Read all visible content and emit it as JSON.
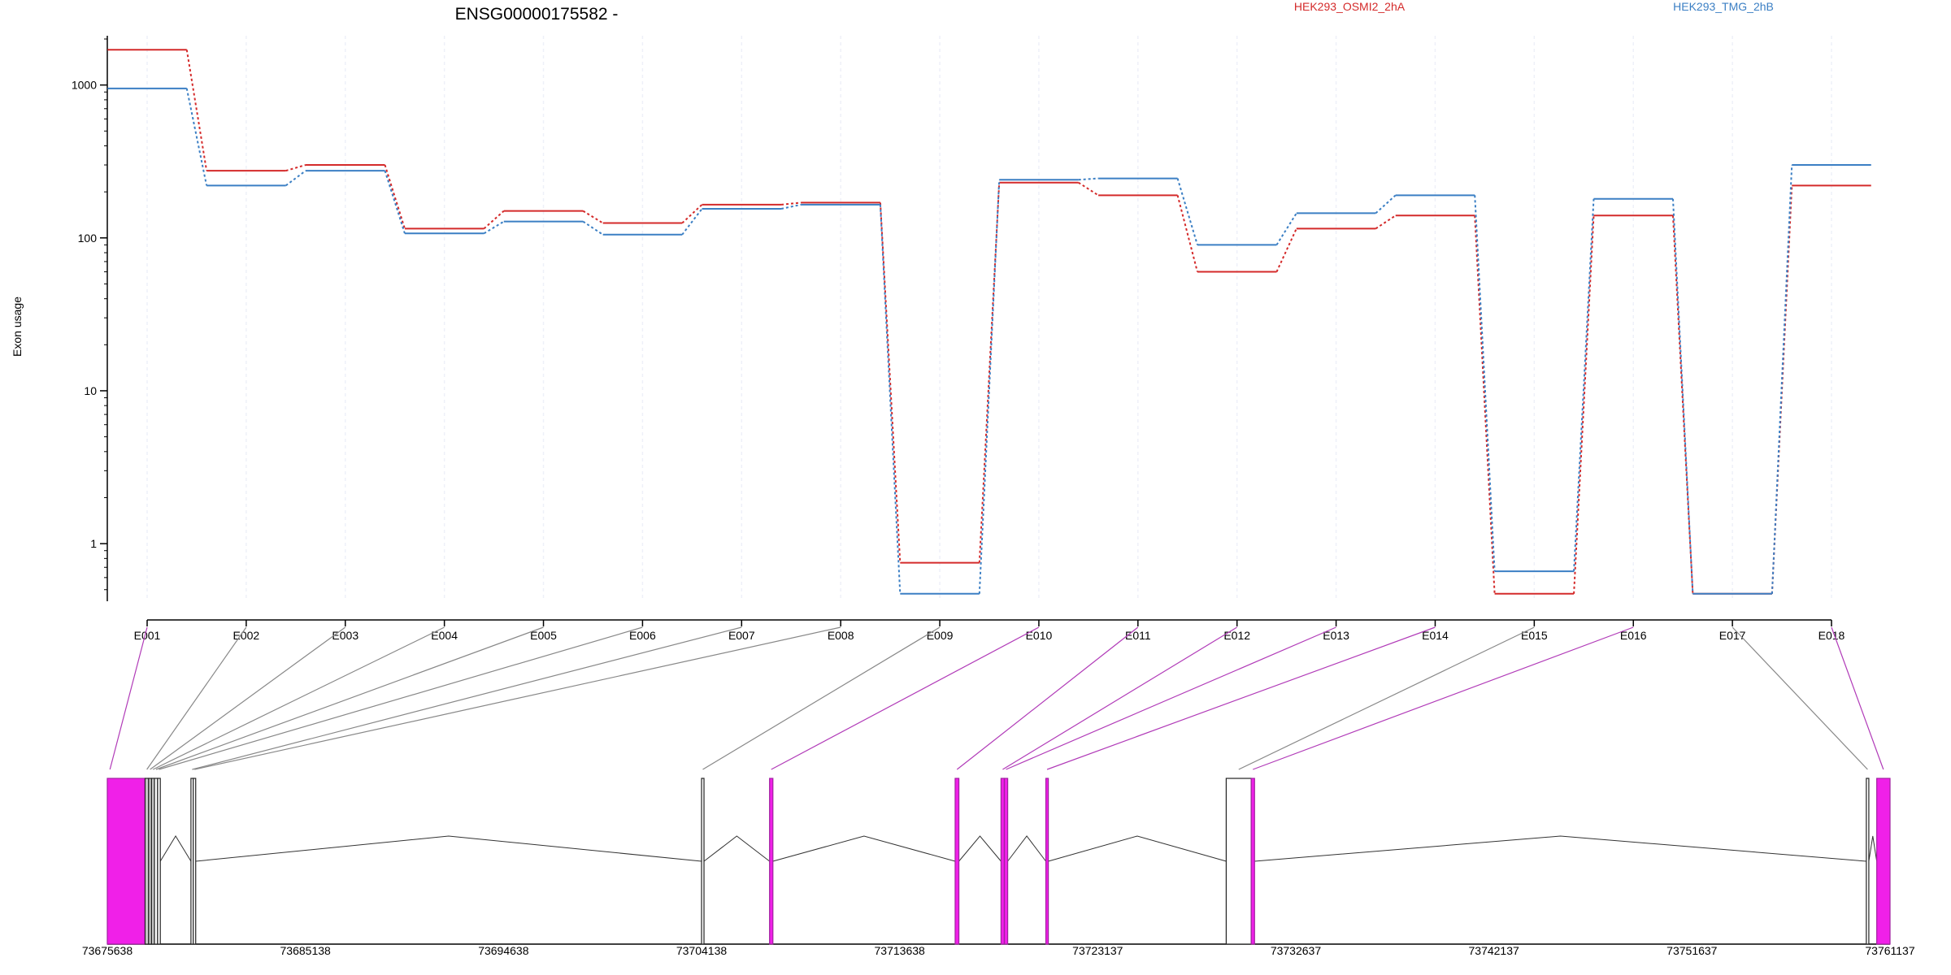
{
  "chart_data": {
    "type": "line",
    "title": "ENSG00000175582 -",
    "ylabel": "Exon usage",
    "xlabel": "",
    "y_scale": "log",
    "ylim": [
      0.42,
      2100
    ],
    "y_ticks": [
      1,
      10,
      100,
      1000
    ],
    "y_tick_labels": [
      "1",
      "10",
      "100",
      "1000"
    ],
    "categories": [
      "E001",
      "E002",
      "E003",
      "E004",
      "E005",
      "E006",
      "E007",
      "E008",
      "E009",
      "E010",
      "E011",
      "E012",
      "E013",
      "E014",
      "E015",
      "E016",
      "E017",
      "E018"
    ],
    "series": [
      {
        "name": "HEK293_OSMI2_2hA",
        "color": "#d42a2a",
        "values": [
          1700,
          275,
          300,
          115,
          150,
          125,
          165,
          170,
          0.75,
          230,
          190,
          60,
          115,
          140,
          0.47,
          140,
          0.47,
          220
        ]
      },
      {
        "name": "HEK293_TMG_2hB",
        "color": "#3b7fc4",
        "values": [
          950,
          220,
          275,
          107,
          128,
          105,
          155,
          165,
          0.47,
          240,
          245,
          90,
          145,
          190,
          0.66,
          180,
          0.47,
          300
        ]
      }
    ],
    "grid": true,
    "legend": "top",
    "gene_model": {
      "coordinate_labels": [
        "73675638",
        "73685138",
        "73694638",
        "73704138",
        "73713638",
        "73723137",
        "73732637",
        "73742137",
        "73751637",
        "73761137"
      ],
      "coordinate_values": [
        73675638,
        73685138,
        73694638,
        73704138,
        73713638,
        73723137,
        73732637,
        73742137,
        73751637,
        73761137
      ],
      "highlight_color": "#e621e0",
      "link_color_plain": "#888888",
      "link_color_highlight": "#b13bb8",
      "exons": [
        {
          "id": "E001",
          "start": 73675638,
          "end": 73677450,
          "fill": "#f020e8",
          "highlight": true
        },
        {
          "id": "E002",
          "start": 73677450,
          "end": 73677620,
          "fill": "#c8c8c8",
          "highlight": false
        },
        {
          "id": "E003",
          "start": 73677620,
          "end": 73677760,
          "fill": "#c8c8c8",
          "highlight": false
        },
        {
          "id": "E004",
          "start": 73677760,
          "end": 73677900,
          "fill": "#c8c8c8",
          "highlight": false
        },
        {
          "id": "E005",
          "start": 73677900,
          "end": 73678050,
          "fill": "#ffffff",
          "highlight": false
        },
        {
          "id": "E006",
          "start": 73678050,
          "end": 73678180,
          "fill": "#ffffff",
          "highlight": false
        },
        {
          "id": "E007",
          "start": 73679650,
          "end": 73679760,
          "fill": "#ffffff",
          "highlight": false
        },
        {
          "id": "E008",
          "start": 73679760,
          "end": 73679870,
          "fill": "#ffffff",
          "highlight": false
        },
        {
          "id": "E009",
          "start": 73704138,
          "end": 73704250,
          "fill": "#ffffff",
          "highlight": false
        },
        {
          "id": "E010",
          "start": 73707400,
          "end": 73707560,
          "fill": "#f020e8",
          "highlight": true
        },
        {
          "id": "E011",
          "start": 73716300,
          "end": 73716480,
          "fill": "#f020e8",
          "highlight": true
        },
        {
          "id": "E012",
          "start": 73718500,
          "end": 73718660,
          "fill": "#f020e8",
          "highlight": true
        },
        {
          "id": "E013",
          "start": 73718660,
          "end": 73718820,
          "fill": "#f020e8",
          "highlight": true
        },
        {
          "id": "E014",
          "start": 73720650,
          "end": 73720770,
          "fill": "#f020e8",
          "highlight": true
        },
        {
          "id": "E015",
          "start": 73729300,
          "end": 73730500,
          "fill": "#ffffff",
          "highlight": false
        },
        {
          "id": "E016",
          "start": 73730500,
          "end": 73730660,
          "fill": "#f020e8",
          "highlight": true
        },
        {
          "id": "E017",
          "start": 73760000,
          "end": 73760120,
          "fill": "#ffffff",
          "highlight": false
        },
        {
          "id": "E018",
          "start": 73760500,
          "end": 73761137,
          "fill": "#f020e8",
          "highlight": true
        }
      ]
    }
  }
}
